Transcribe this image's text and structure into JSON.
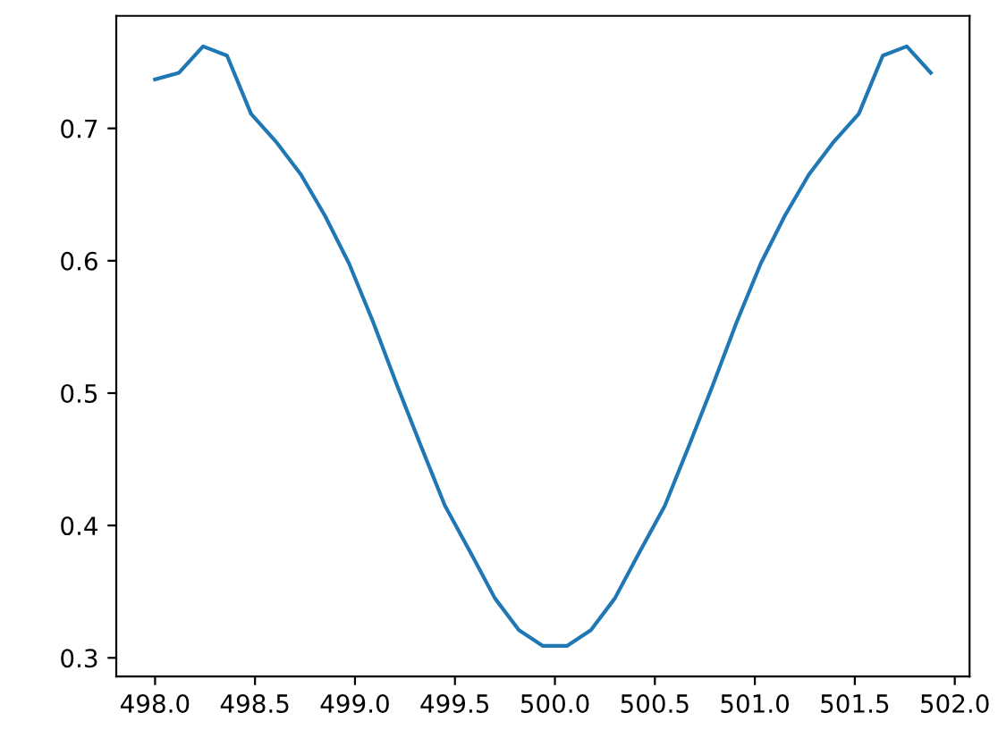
{
  "chart_data": {
    "type": "line",
    "x": [
      498.0,
      498.12,
      498.24,
      498.36,
      498.48,
      498.61,
      498.73,
      498.85,
      498.97,
      499.09,
      499.21,
      499.33,
      499.45,
      499.58,
      499.7,
      499.82,
      499.94,
      500.06,
      500.18,
      500.3,
      500.42,
      500.55,
      500.67,
      500.79,
      500.91,
      501.03,
      501.15,
      501.27,
      501.39,
      501.52,
      501.64,
      501.76,
      501.88
    ],
    "series": [
      {
        "color": "#1f77b4",
        "values": [
          0.737,
          0.742,
          0.762,
          0.755,
          0.711,
          0.689,
          0.665,
          0.634,
          0.598,
          0.554,
          0.506,
          0.46,
          0.415,
          0.379,
          0.345,
          0.321,
          0.309,
          0.309,
          0.321,
          0.345,
          0.379,
          0.415,
          0.46,
          0.506,
          0.554,
          0.598,
          0.634,
          0.665,
          0.689,
          0.711,
          0.755,
          0.762,
          0.742
        ]
      }
    ],
    "xlim": [
      497.806,
      502.074
    ],
    "ylim": [
      0.286,
      0.785
    ],
    "xticks": [
      {
        "value": 498,
        "label": "498.0"
      },
      {
        "value": 498.5,
        "label": "498.5"
      },
      {
        "value": 499,
        "label": "499.0"
      },
      {
        "value": 499.5,
        "label": "499.5"
      },
      {
        "value": 500,
        "label": "500.0"
      },
      {
        "value": 500.5,
        "label": "500.5"
      },
      {
        "value": 501,
        "label": "501.0"
      },
      {
        "value": 501.5,
        "label": "501.5"
      },
      {
        "value": 502,
        "label": "502.0"
      }
    ],
    "yticks": [
      0.3,
      0.4,
      0.5,
      0.6,
      0.7
    ],
    "grid": false,
    "legend": false,
    "marker": "none",
    "line_style": "solid"
  }
}
